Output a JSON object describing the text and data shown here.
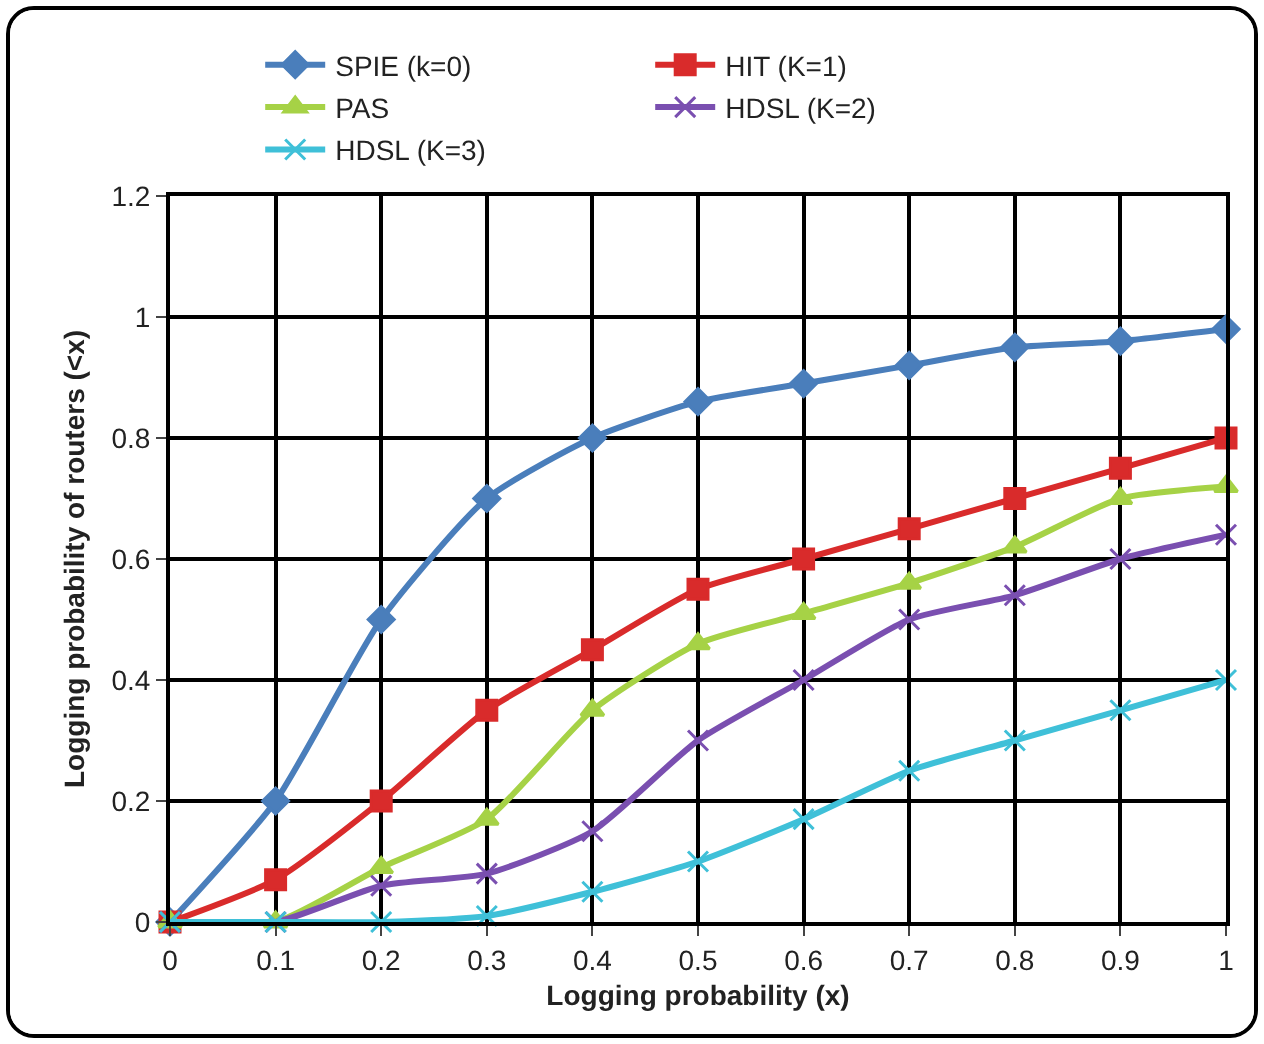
{
  "chart_data": {
    "type": "line",
    "xlabel": "Logging probability (x)",
    "ylabel": "Logging probability of routers (<x)",
    "x": [
      0,
      0.1,
      0.2,
      0.3,
      0.4,
      0.5,
      0.6,
      0.7,
      0.8,
      0.9,
      1
    ],
    "series": [
      {
        "name": "SPIE (k=0)",
        "color": "#4a7ebb",
        "marker": "diamond",
        "values": [
          0,
          0.2,
          0.5,
          0.7,
          0.8,
          0.86,
          0.89,
          0.92,
          0.95,
          0.96,
          0.98
        ]
      },
      {
        "name": "HIT (K=1)",
        "color": "#d92b2b",
        "marker": "square",
        "values": [
          0,
          0.07,
          0.2,
          0.35,
          0.45,
          0.55,
          0.6,
          0.65,
          0.7,
          0.75,
          0.8
        ]
      },
      {
        "name": "PAS",
        "color": "#a6d246",
        "marker": "triangle",
        "values": [
          0,
          0,
          0.09,
          0.17,
          0.35,
          0.46,
          0.51,
          0.56,
          0.62,
          0.7,
          0.72
        ]
      },
      {
        "name": "HDSL (K=2)",
        "color": "#7a4fb0",
        "marker": "cross",
        "values": [
          0,
          0,
          0.06,
          0.08,
          0.15,
          0.3,
          0.4,
          0.5,
          0.54,
          0.6,
          0.64
        ]
      },
      {
        "name": "HDSL (K=3)",
        "color": "#3fc0d8",
        "marker": "cross",
        "values": [
          0,
          0,
          0,
          0.01,
          0.05,
          0.1,
          0.17,
          0.25,
          0.3,
          0.35,
          0.4
        ]
      }
    ],
    "xlim": [
      0,
      1
    ],
    "xticks": [
      0,
      0.1,
      0.2,
      0.3,
      0.4,
      0.5,
      0.6,
      0.7,
      0.8,
      0.9,
      1
    ],
    "ylim": [
      0,
      1.2
    ],
    "yticks": [
      0,
      0.2,
      0.4,
      0.6,
      0.8,
      1,
      1.2
    ],
    "grid": true,
    "legend": "top"
  }
}
